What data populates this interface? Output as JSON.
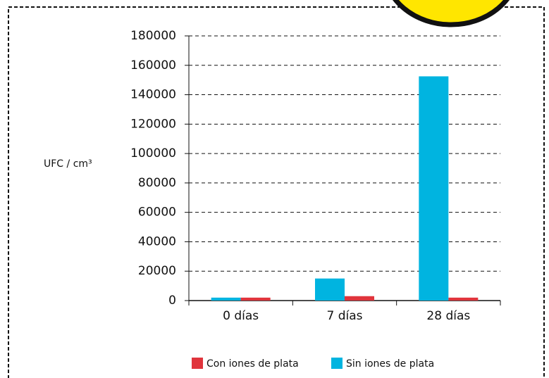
{
  "chart_data": {
    "type": "bar",
    "y_label": "UFC / cm³",
    "categories": [
      "0 días",
      "7 días",
      "28 días"
    ],
    "series": [
      {
        "name": "Sin iones de plata",
        "color": "#00b4e0",
        "values": [
          2000,
          15000,
          152500
        ]
      },
      {
        "name": "Con iones de plata",
        "color": "#e0343c",
        "values": [
          2000,
          3000,
          2000
        ]
      }
    ],
    "legend_order": [
      "Con iones de plata",
      "Sin iones de plata"
    ],
    "ylim": [
      0,
      180000
    ],
    "yticks": [
      0,
      20000,
      40000,
      60000,
      80000,
      100000,
      120000,
      140000,
      160000,
      180000
    ],
    "grid": true
  }
}
